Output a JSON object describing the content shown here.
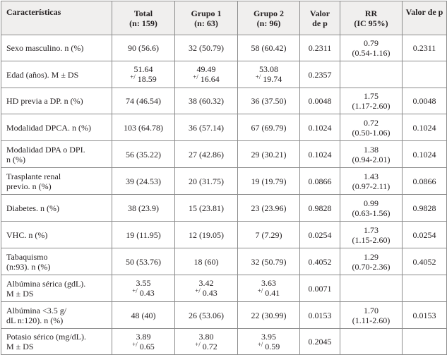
{
  "headers": [
    "Características",
    "Total (n: 159)",
    "Grupo 1 (n: 63)",
    "Grupo 2 (n: 96)",
    "Valor de p",
    "RR (IC 95%)",
    "Valor de p"
  ],
  "headers_lines": [
    [
      "Características"
    ],
    [
      "Total",
      "(n: 159)"
    ],
    [
      "Grupo 1",
      "(n: 63)"
    ],
    [
      "Grupo 2",
      "(n: 96)"
    ],
    [
      "Valor",
      "de p"
    ],
    [
      "RR",
      "(IC 95%)"
    ],
    [
      "Valor de p"
    ]
  ],
  "rows": [
    {
      "label": "Sexo masculino. n (%)",
      "total": "90 (56.6)",
      "g1": "32 (50.79)",
      "g2": "58 (60.42)",
      "p": "0.2311",
      "rr": "0.79",
      "ic": "(0.54-1.16)",
      "p2": "0.2311"
    },
    {
      "label": "Edad (años). M ± DS",
      "total": "51.64",
      "total_sd": "18.59",
      "g1": "49.49",
      "g1_sd": "16.64",
      "g2": "53.08",
      "g2_sd": "19.74",
      "p": "0.2357",
      "rr": "",
      "ic": "",
      "p2": ""
    },
    {
      "label": "HD previa a DP. n (%)",
      "total": "74 (46.54)",
      "g1": "38 (60.32)",
      "g2": "36 (37.50)",
      "p": "0.0048",
      "rr": "1.75",
      "ic": "(1.17-2.60)",
      "p2": "0.0048"
    },
    {
      "label": "Modalidad DPCA. n (%)",
      "total": "103 (64.78)",
      "g1": "36 (57.14)",
      "g2": "67 (69.79)",
      "p": "0.1024",
      "rr": "0.72",
      "ic": "(0.50-1.06)",
      "p2": "0.1024"
    },
    {
      "label": "Modalidad DPA o DPI. n (%)",
      "total": "56 (35.22)",
      "g1": "27 (42.86)",
      "g2": "29 (30.21)",
      "p": "0.1024",
      "rr": "1.38",
      "ic": "(0.94-2.01)",
      "p2": "0.1024"
    },
    {
      "label": "Trasplante renal previo. n (%)",
      "total": "39 (24.53)",
      "g1": "20 (31.75)",
      "g2": "19 (19.79)",
      "p": "0.0866",
      "rr": "1.43",
      "ic": "(0.97-2.11)",
      "p2": "0.0866"
    },
    {
      "label": "Diabetes. n (%)",
      "total": "38 (23.9)",
      "g1": "15 (23.81)",
      "g2": "23 (23.96)",
      "p": "0.9828",
      "rr": "0.99",
      "ic": "(0.63-1.56)",
      "p2": "0.9828"
    },
    {
      "label": "VHC. n (%)",
      "total": "19 (11.95)",
      "g1": "12 (19.05)",
      "g2": "7 (7.29)",
      "p": "0.0254",
      "rr": "1.73",
      "ic": "(1.15-2.60)",
      "p2": "0.0254"
    },
    {
      "label": "Tabaquismo (n:93). n (%)",
      "total": "50 (53.76)",
      "g1": "18 (60)",
      "g2": "32 (50.79)",
      "p": "0.4052",
      "rr": "1.29",
      "ic": "(0.70-2.36)",
      "p2": "0.4052"
    },
    {
      "label": "Albúmina sérica (gdL). M ± DS",
      "total": "3.55",
      "total_sd": "0.43",
      "g1": "3.42",
      "g1_sd": "0.43",
      "g2": "3.63",
      "g2_sd": "0.41",
      "p": "0.0071",
      "rr": "",
      "ic": "",
      "p2": ""
    },
    {
      "label": "Albúmina <3.5 g/dL n:120). n (%)",
      "total": "48 (40)",
      "g1": "26 (53.06)",
      "g2": "22 (30.99)",
      "p": "0.0153",
      "rr": "1.70",
      "ic": "(1.11-2.60)",
      "p2": "0.0153"
    },
    {
      "label": "Potasio sérico (mg/dL). M ± DS",
      "total": "3.89",
      "total_sd": "0.65",
      "g1": "3.80",
      "g1_sd": "0.72",
      "g2": "3.95",
      "g2_sd": "0.59",
      "p": "0.2045",
      "rr": "",
      "ic": "",
      "p2": ""
    }
  ],
  "label_lines": [
    [
      "Sexo masculino. n (%)"
    ],
    [
      "Edad (años). M ± DS"
    ],
    [
      "HD previa a DP. n (%)"
    ],
    [
      "Modalidad DPCA. n (%)"
    ],
    [
      "Modalidad DPA o DPI.",
      "n (%)"
    ],
    [
      "Trasplante renal",
      "previo. n (%)"
    ],
    [
      "Diabetes. n (%)"
    ],
    [
      "VHC. n (%)"
    ],
    [
      "Tabaquismo",
      "(n:93). n (%)"
    ],
    [
      "Albúmina sérica (gdL).",
      "M ± DS"
    ],
    [
      "Albúmina <3.5 g/",
      "dL n:120). n (%)"
    ],
    [
      "Potasio sérico (mg/dL).",
      "M ± DS"
    ]
  ],
  "pm_prefix": "+/",
  "row_classes": [
    "h36",
    "h37",
    "h36",
    "h37",
    "h37",
    "h37",
    "h37",
    "h37",
    "h37",
    "h37",
    "h37",
    "h36"
  ]
}
